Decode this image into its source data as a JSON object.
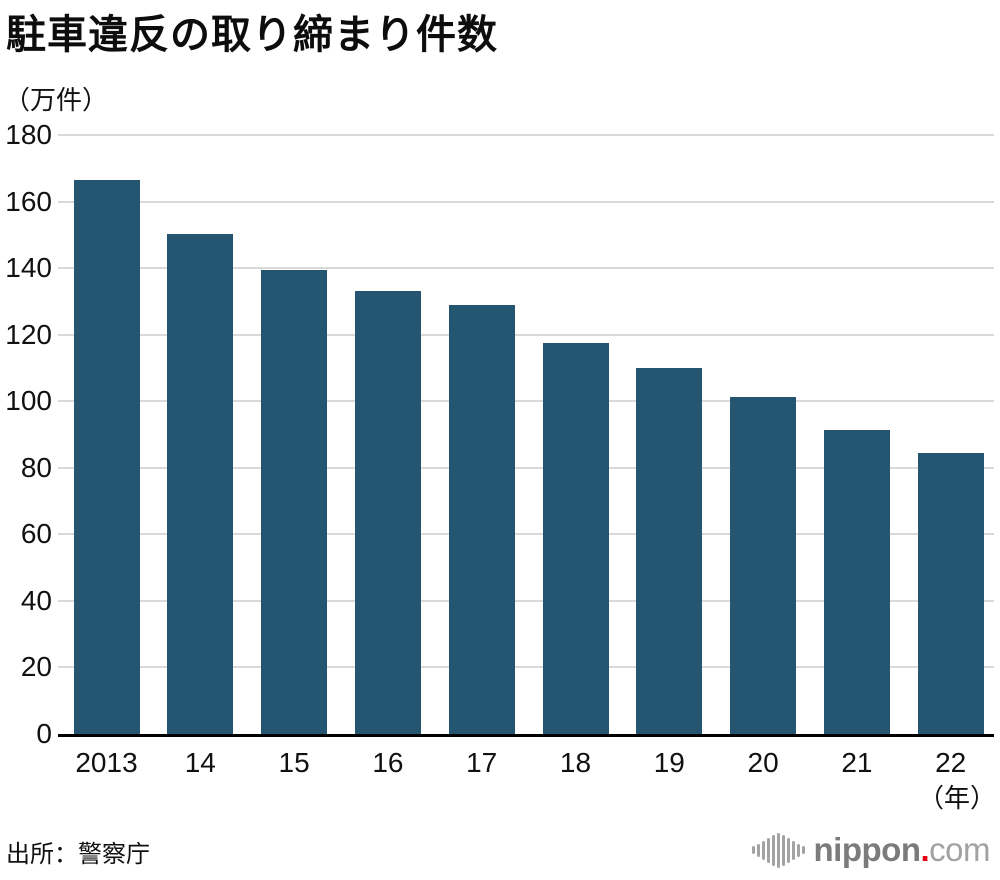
{
  "title": "駐車違反の取り締まり件数",
  "unit_label": "（万件）",
  "source": "出所：警察庁",
  "year_suffix": "（年）",
  "logo": {
    "icon": "soundwave-icon",
    "name": "nippon",
    "dot": ".",
    "tld": "com"
  },
  "colors": {
    "bar": "#245671",
    "grid": "#d9d9d9",
    "axis": "#000000",
    "text": "#111111",
    "logo_gray": "#7b7b7b",
    "logo_light_gray": "#a2a2a2",
    "logo_red": "#e60012"
  },
  "chart_data": {
    "type": "bar",
    "categories": [
      "2013",
      "14",
      "15",
      "16",
      "17",
      "18",
      "19",
      "20",
      "21",
      "22"
    ],
    "values": [
      166.6,
      150.2,
      139.5,
      133.2,
      128.8,
      117.6,
      110.1,
      101.4,
      91.3,
      84.5
    ],
    "title": "駐車違反の取り締まり件数",
    "xlabel": "年",
    "ylabel": "万件",
    "ylim": [
      0,
      180
    ],
    "ytick_step": 20,
    "grid": true,
    "legend": false
  }
}
